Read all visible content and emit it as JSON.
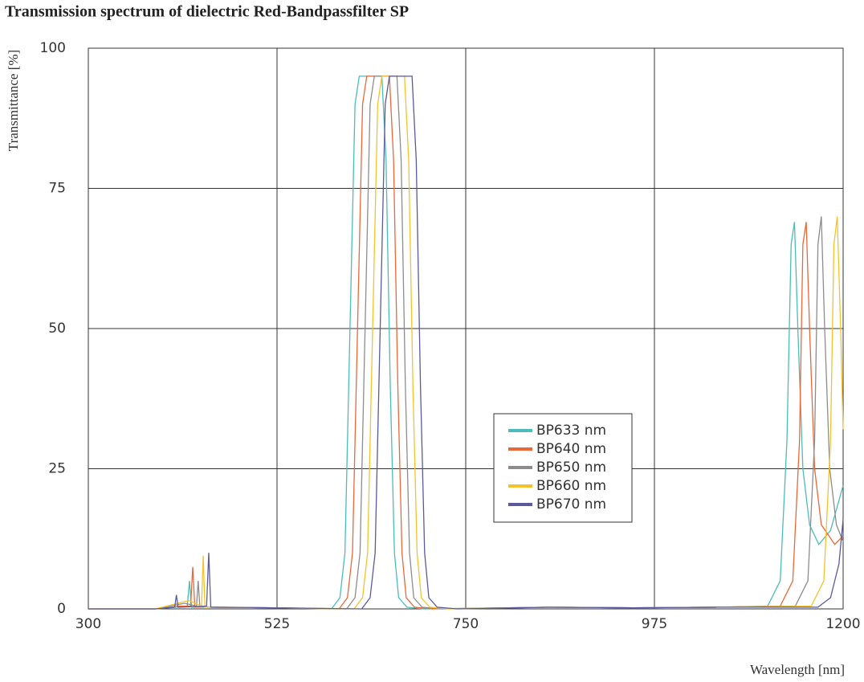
{
  "chart_data": {
    "type": "line",
    "title": "Transmission spectrum of dielectric Red-Bandpassfilter SP",
    "x_label": "Wavelength [nm]",
    "y_label": "Transmittance [%]",
    "xlim": [
      300,
      1200
    ],
    "xticks": [
      300,
      525,
      750,
      975,
      1200
    ],
    "ylim": [
      0,
      100
    ],
    "yticks": [
      0,
      25,
      50,
      75,
      100
    ],
    "grid": true,
    "legend": "center-right",
    "series": [
      {
        "name": "BP633 nm",
        "color": "#4bbcb8",
        "x": [
          300,
          380,
          405,
          418,
          420.6,
          423,
          440,
          520,
          590,
          600,
          606,
          612,
          618,
          623,
          650,
          655,
          660,
          665,
          670,
          680,
          700,
          850,
          950,
          1050,
          1110,
          1125,
          1133,
          1138,
          1142,
          1146,
          1152,
          1160,
          1171,
          1185,
          1200
        ],
        "values": [
          0,
          0,
          0.3,
          0.5,
          5,
          0.3,
          0.3,
          0.2,
          0,
          2,
          10,
          50,
          90,
          95,
          95,
          80,
          40,
          10,
          2,
          0.3,
          0,
          0.3,
          0.2,
          0.3,
          0.5,
          5,
          30,
          65,
          69,
          50,
          25,
          15,
          11.5,
          14,
          22
        ]
      },
      {
        "name": "BP640 nm",
        "color": "#e8683a",
        "x": [
          300,
          380,
          410,
          422,
          424.5,
          427,
          440,
          520,
          599,
          609,
          615,
          621,
          627,
          632,
          659,
          664,
          669,
          674,
          679,
          689,
          710,
          850,
          950,
          1050,
          1125,
          1140,
          1148,
          1152,
          1156,
          1160,
          1166,
          1174,
          1190,
          1200
        ],
        "values": [
          0,
          0,
          0.5,
          0.5,
          7.5,
          0.3,
          0.3,
          0.2,
          0,
          2,
          10,
          50,
          90,
          95,
          95,
          80,
          40,
          10,
          2,
          0.3,
          0,
          0.3,
          0.2,
          0.3,
          0.5,
          5,
          30,
          65,
          69,
          50,
          25,
          15,
          11.5,
          13
        ]
      },
      {
        "name": "BP650 nm",
        "color": "#8c8c8c",
        "x": [
          300,
          380,
          415,
          429,
          431,
          433,
          440,
          520,
          608,
          618,
          624,
          630,
          636,
          641,
          668,
          673,
          678,
          683,
          688,
          698,
          720,
          850,
          950,
          1050,
          1143,
          1158,
          1166,
          1170,
          1174,
          1178,
          1184,
          1192,
          1200
        ],
        "values": [
          0,
          0,
          1,
          0.5,
          5,
          0.3,
          0.3,
          0.2,
          0,
          2,
          10,
          50,
          90,
          95,
          95,
          80,
          40,
          10,
          2,
          0.3,
          0,
          0.3,
          0.2,
          0.3,
          0.5,
          5,
          30,
          65,
          70,
          50,
          25,
          15,
          12
        ]
      },
      {
        "name": "BP660 nm",
        "color": "#f5c22b",
        "x": [
          300,
          380,
          420,
          435,
          437,
          439,
          450,
          520,
          617,
          627,
          633,
          639,
          645,
          650,
          677,
          682,
          687,
          692,
          697,
          707,
          730,
          850,
          950,
          1050,
          1162,
          1177,
          1185,
          1189,
          1193,
          1197,
          1200
        ],
        "values": [
          0,
          0,
          1.5,
          0.5,
          9.5,
          0.3,
          0.3,
          0.2,
          0,
          2,
          10,
          50,
          90,
          95,
          95,
          80,
          40,
          10,
          2,
          0.3,
          0,
          0.3,
          0.2,
          0.3,
          0.5,
          5,
          30,
          65,
          70,
          50,
          32
        ]
      },
      {
        "name": "BP670 nm",
        "color": "#5a5a9a",
        "x": [
          300,
          380,
          403,
          405,
          407,
          441,
          443.6,
          446,
          460,
          520,
          626,
          636,
          642,
          648,
          654,
          659,
          686,
          691,
          696,
          701,
          706,
          716,
          740,
          850,
          950,
          1050,
          1170,
          1185,
          1195,
          1200
        ],
        "values": [
          0,
          0,
          0.3,
          2.5,
          0.3,
          0.5,
          10,
          0.3,
          0.3,
          0.2,
          0,
          2,
          10,
          50,
          90,
          95,
          95,
          80,
          40,
          10,
          2,
          0.3,
          0,
          0.3,
          0.2,
          0.3,
          0.3,
          2,
          8,
          16
        ]
      }
    ]
  }
}
